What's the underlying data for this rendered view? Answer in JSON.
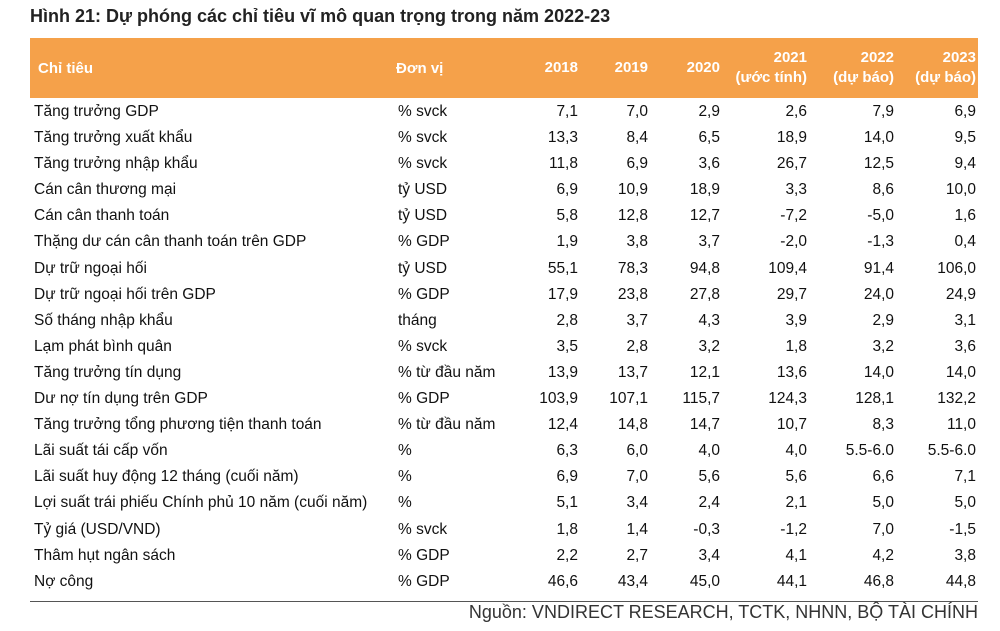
{
  "title": "Hình 21: Dự phóng các chỉ tiêu vĩ mô quan trọng trong năm 2022-23",
  "header": {
    "indicator": "Chỉ tiêu",
    "unit": "Đơn vị",
    "years": [
      {
        "l1": "",
        "l2": "2018"
      },
      {
        "l1": "",
        "l2": "2019"
      },
      {
        "l1": "",
        "l2": "2020"
      },
      {
        "l1": "2021",
        "l2": "(ước tính)"
      },
      {
        "l1": "2022",
        "l2": "(dự báo)"
      },
      {
        "l1": "2023",
        "l2": "(dự báo)"
      }
    ]
  },
  "rows": [
    {
      "name": "Tăng trưởng GDP",
      "unit": "% svck",
      "v": [
        "7,1",
        "7,0",
        "2,9",
        "2,6",
        "7,9",
        "6,9"
      ]
    },
    {
      "name": "Tăng trưởng xuất khẩu",
      "unit": "% svck",
      "v": [
        "13,3",
        "8,4",
        "6,5",
        "18,9",
        "14,0",
        "9,5"
      ]
    },
    {
      "name": "Tăng trưởng nhập khẩu",
      "unit": "% svck",
      "v": [
        "11,8",
        "6,9",
        "3,6",
        "26,7",
        "12,5",
        "9,4"
      ]
    },
    {
      "name": "Cán cân thương mại",
      "unit": "tỷ USD",
      "v": [
        "6,9",
        "10,9",
        "18,9",
        "3,3",
        "8,6",
        "10,0"
      ]
    },
    {
      "name": "Cán cân thanh toán",
      "unit": "tỷ USD",
      "v": [
        "5,8",
        "12,8",
        "12,7",
        "-7,2",
        "-5,0",
        "1,6"
      ]
    },
    {
      "name": "Thặng dư cán cân thanh toán trên GDP",
      "unit": "% GDP",
      "v": [
        "1,9",
        "3,8",
        "3,7",
        "-2,0",
        "-1,3",
        "0,4"
      ]
    },
    {
      "name": "Dự trữ ngoại hối",
      "unit": "tỷ USD",
      "v": [
        "55,1",
        "78,3",
        "94,8",
        "109,4",
        "91,4",
        "106,0"
      ]
    },
    {
      "name": "Dự trữ ngoại hối trên GDP",
      "unit": "% GDP",
      "v": [
        "17,9",
        "23,8",
        "27,8",
        "29,7",
        "24,0",
        "24,9"
      ]
    },
    {
      "name": "Số tháng nhập khẩu",
      "unit": "tháng",
      "v": [
        "2,8",
        "3,7",
        "4,3",
        "3,9",
        "2,9",
        "3,1"
      ]
    },
    {
      "name": "Lạm phát bình quân",
      "unit": "% svck",
      "v": [
        "3,5",
        "2,8",
        "3,2",
        "1,8",
        "3,2",
        "3,6"
      ]
    },
    {
      "name": "Tăng trưởng tín dụng",
      "unit": "% từ đầu năm",
      "v": [
        "13,9",
        "13,7",
        "12,1",
        "13,6",
        "14,0",
        "14,0"
      ]
    },
    {
      "name": "Dư nợ tín dụng trên GDP",
      "unit": "% GDP",
      "v": [
        "103,9",
        "107,1",
        "115,7",
        "124,3",
        "128,1",
        "132,2"
      ]
    },
    {
      "name": "Tăng trưởng tổng phương tiện thanh toán",
      "unit": "% từ đầu năm",
      "v": [
        "12,4",
        "14,8",
        "14,7",
        "10,7",
        "8,3",
        "11,0"
      ]
    },
    {
      "name": "Lãi suất tái cấp vốn",
      "unit": "%",
      "v": [
        "6,3",
        "6,0",
        "4,0",
        "4,0",
        "5.5-6.0",
        "5.5-6.0"
      ]
    },
    {
      "name": "Lãi suất huy động 12 tháng (cuối năm)",
      "unit": "%",
      "v": [
        "6,9",
        "7,0",
        "5,6",
        "5,6",
        "6,6",
        "7,1"
      ]
    },
    {
      "name": "Lợi suất trái phiếu Chính phủ 10 năm (cuối năm)",
      "unit": "%",
      "v": [
        "5,1",
        "3,4",
        "2,4",
        "2,1",
        "5,0",
        "5,0"
      ]
    },
    {
      "name": "Tỷ giá (USD/VND)",
      "unit": "% svck",
      "v": [
        "1,8",
        "1,4",
        "-0,3",
        "-1,2",
        "7,0",
        "-1,5"
      ]
    },
    {
      "name": "Thâm hụt ngân sách",
      "unit": "% GDP",
      "v": [
        "2,2",
        "2,7",
        "3,4",
        "4,1",
        "4,2",
        "3,8"
      ]
    },
    {
      "name": "Nợ công",
      "unit": "% GDP",
      "v": [
        "46,6",
        "43,4",
        "45,0",
        "44,1",
        "46,8",
        "44,8"
      ]
    }
  ],
  "source": "Nguồn: VNDIRECT RESEARCH, TCTK, NHNN, BỘ TÀI CHÍNH",
  "colors": {
    "header_bg": "#f5a14a",
    "header_text": "#ffffff"
  }
}
